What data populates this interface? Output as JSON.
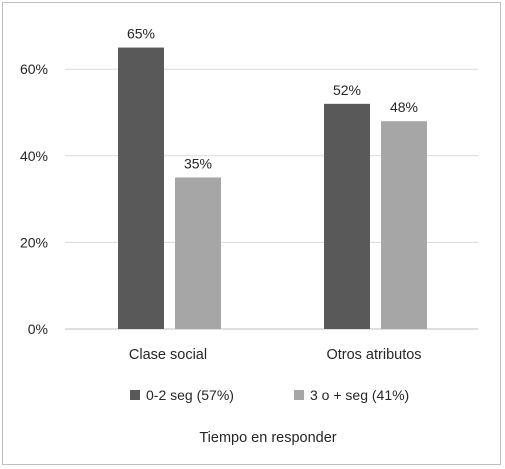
{
  "chart_data": {
    "type": "bar",
    "categories": [
      "Clase social",
      "Otros atributos"
    ],
    "series": [
      {
        "name": "0-2 seg (57%)",
        "values": [
          65,
          52
        ],
        "color": "#595959"
      },
      {
        "name": "3 o + seg (41%)",
        "values": [
          35,
          48
        ],
        "color": "#a6a6a6"
      }
    ],
    "data_labels": [
      [
        "65%",
        "52%"
      ],
      [
        "35%",
        "48%"
      ]
    ],
    "y_ticks": [
      0,
      20,
      40,
      60
    ],
    "y_tick_labels": [
      "0%",
      "20%",
      "40%",
      "60%"
    ],
    "ylim": [
      0,
      70
    ],
    "xlabel": "Tiempo en responder",
    "ylabel": "",
    "grid": true,
    "legend_position": "bottom"
  }
}
